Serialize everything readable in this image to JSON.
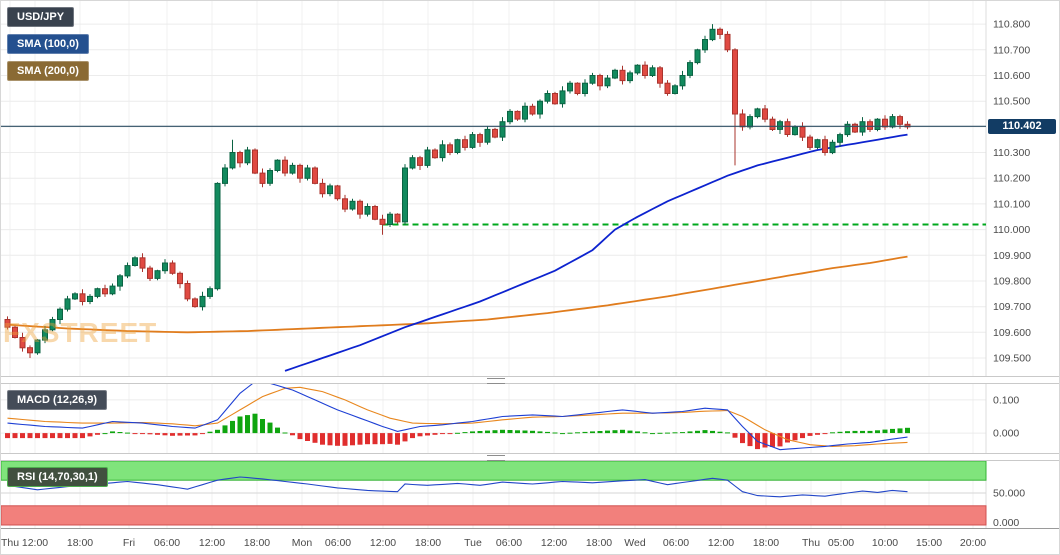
{
  "app": {
    "symbol_label": "USD/JPY",
    "sma100_label": "SMA (100,0)",
    "sma200_label": "SMA (200,0)",
    "macd_label": "MACD (12,26,9)",
    "rsi_label": "RSI (14,70,30,1)",
    "watermark": "FXSTREET",
    "price_badge": "110.402"
  },
  "ui_colors": {
    "symbol_badge": "#39424e",
    "sma100_badge": "#24508f",
    "sma200_badge": "#8a6a34",
    "macd_badge": "#444c58",
    "rsi_badge": "#41503f",
    "rsi_badge_border": "#4fae4f",
    "price_badge_bg": "#123c64"
  },
  "chart_data": {
    "type": "candlestick",
    "symbol": "USD/JPY",
    "colors": {
      "candle_up": "#128a5e",
      "candle_up_border": "#0b6343",
      "candle_down": "#e04a42",
      "candle_down_border": "#aa342e",
      "sma100": "#0d23cf",
      "sma200": "#e07c1d",
      "price_line": "#2e4f63",
      "support_dashed": "#00a81e",
      "macd": "#1d3fd4",
      "macd_signal": "#e8871e",
      "hist_up": "#0fa50f",
      "hist_down": "#e02e2e",
      "rsi": "#2246c8",
      "rsi_overbought": "#80e47c",
      "rsi_oversold": "#f2807c",
      "rsi_band_border_g": "#35b335",
      "rsi_band_border_r": "#d05050",
      "grid": "#f0f0f0",
      "grid_main": "#ececec",
      "axis_text": "#4a4a4a",
      "axis_border": "#9a9a9a",
      "axis_sep": "#dddddd",
      "rsi_mid_line": "#d6d6d6"
    },
    "x_axis": {
      "labels": [
        [
          "Thu",
          9
        ],
        [
          "12:00",
          34
        ],
        [
          "18:00",
          79
        ],
        [
          "Fri",
          128
        ],
        [
          "06:00",
          166
        ],
        [
          "12:00",
          211
        ],
        [
          "18:00",
          256
        ],
        [
          "Mon",
          301
        ],
        [
          "06:00",
          337
        ],
        [
          "12:00",
          382
        ],
        [
          "18:00",
          427
        ],
        [
          "Tue",
          472
        ],
        [
          "06:00",
          508
        ],
        [
          "12:00",
          553
        ],
        [
          "18:00",
          598
        ],
        [
          "Wed",
          634
        ],
        [
          "06:00",
          675
        ],
        [
          "12:00",
          720
        ],
        [
          "18:00",
          765
        ],
        [
          "Thu",
          810
        ],
        [
          "05:00",
          840
        ],
        [
          "10:00",
          884
        ],
        [
          "15:00",
          928
        ],
        [
          "20:00",
          972
        ]
      ]
    },
    "price_panel": {
      "ylim": [
        109.43,
        110.89
      ],
      "yticks": [
        110.8,
        110.7,
        110.6,
        110.5,
        110.4,
        110.3,
        110.2,
        110.1,
        110.0,
        109.9,
        109.8,
        109.7,
        109.6,
        109.5
      ],
      "current_price": 110.402,
      "support_dashed_level": 110.02,
      "support_dashed_start_index": 50,
      "first_open": 109.65,
      "wick_pattern": [
        0.012,
        0.006,
        0.018,
        0.009,
        0.004,
        0.015,
        0.01,
        0.007
      ],
      "special_wicks": {
        "3": {
          "low": 109.5
        },
        "30": {
          "high": 110.35
        },
        "50": {
          "low": 109.98
        },
        "94": {
          "high": 110.8
        },
        "97": {
          "low": 110.25
        }
      },
      "closes": [
        109.62,
        109.58,
        109.54,
        109.52,
        109.57,
        109.61,
        109.65,
        109.69,
        109.73,
        109.75,
        109.72,
        109.74,
        109.77,
        109.75,
        109.78,
        109.82,
        109.86,
        109.89,
        109.85,
        109.81,
        109.84,
        109.87,
        109.83,
        109.79,
        109.73,
        109.7,
        109.74,
        109.77,
        110.18,
        110.24,
        110.3,
        110.26,
        110.31,
        110.22,
        110.18,
        110.23,
        110.27,
        110.22,
        110.25,
        110.2,
        110.24,
        110.18,
        110.14,
        110.17,
        110.12,
        110.08,
        110.11,
        110.06,
        110.09,
        110.04,
        110.02,
        110.06,
        110.03,
        110.24,
        110.28,
        110.25,
        110.31,
        110.28,
        110.33,
        110.3,
        110.35,
        110.32,
        110.37,
        110.34,
        110.39,
        110.36,
        110.42,
        110.46,
        110.43,
        110.48,
        110.45,
        110.5,
        110.53,
        110.49,
        110.54,
        110.57,
        110.53,
        110.57,
        110.6,
        110.56,
        110.59,
        110.62,
        110.58,
        110.61,
        110.64,
        110.6,
        110.63,
        110.57,
        110.53,
        110.56,
        110.6,
        110.65,
        110.7,
        110.74,
        110.78,
        110.76,
        110.7,
        110.45,
        110.4,
        110.44,
        110.47,
        110.43,
        110.39,
        110.42,
        110.37,
        110.4,
        110.36,
        110.32,
        110.35,
        110.3,
        110.34,
        110.37,
        110.41,
        110.38,
        110.42,
        110.39,
        110.43,
        110.4,
        110.44,
        110.41,
        110.4
      ],
      "sma100": [
        [
          37,
          109.45
        ],
        [
          42,
          109.5
        ],
        [
          47,
          109.55
        ],
        [
          53,
          109.62
        ],
        [
          58,
          109.67
        ],
        [
          63,
          109.72
        ],
        [
          68,
          109.78
        ],
        [
          73,
          109.84
        ],
        [
          78,
          109.92
        ],
        [
          81,
          110.0
        ],
        [
          84,
          110.05
        ],
        [
          88,
          110.11
        ],
        [
          92,
          110.16
        ],
        [
          96,
          110.21
        ],
        [
          100,
          110.25
        ],
        [
          104,
          110.28
        ],
        [
          108,
          110.31
        ],
        [
          112,
          110.33
        ],
        [
          116,
          110.35
        ],
        [
          120,
          110.37
        ]
      ],
      "sma200": [
        [
          0,
          109.63
        ],
        [
          8,
          109.615
        ],
        [
          16,
          109.605
        ],
        [
          24,
          109.6
        ],
        [
          32,
          109.605
        ],
        [
          40,
          109.615
        ],
        [
          48,
          109.625
        ],
        [
          56,
          109.635
        ],
        [
          64,
          109.65
        ],
        [
          72,
          109.675
        ],
        [
          80,
          109.705
        ],
        [
          88,
          109.74
        ],
        [
          96,
          109.78
        ],
        [
          104,
          109.82
        ],
        [
          110,
          109.85
        ],
        [
          115,
          109.87
        ],
        [
          120,
          109.895
        ]
      ]
    },
    "macd_panel": {
      "title": "MACD (12,26,9)",
      "ylim": [
        -0.06,
        0.148
      ],
      "yticks": [
        0.1,
        0.0
      ],
      "macd_line": [
        [
          0,
          0.03
        ],
        [
          5,
          0.02
        ],
        [
          10,
          0.015
        ],
        [
          14,
          0.035
        ],
        [
          18,
          0.03
        ],
        [
          22,
          0.02
        ],
        [
          25,
          0.015
        ],
        [
          28,
          0.04
        ],
        [
          31,
          0.12
        ],
        [
          33,
          0.155
        ],
        [
          35,
          0.15
        ],
        [
          38,
          0.13
        ],
        [
          41,
          0.1
        ],
        [
          44,
          0.07
        ],
        [
          47,
          0.045
        ],
        [
          50,
          0.02
        ],
        [
          52,
          0.005
        ],
        [
          55,
          0.02
        ],
        [
          58,
          0.025
        ],
        [
          62,
          0.035
        ],
        [
          66,
          0.05
        ],
        [
          70,
          0.055
        ],
        [
          74,
          0.05
        ],
        [
          78,
          0.06
        ],
        [
          82,
          0.07
        ],
        [
          86,
          0.06
        ],
        [
          90,
          0.065
        ],
        [
          93,
          0.075
        ],
        [
          96,
          0.07
        ],
        [
          98,
          0.02
        ],
        [
          100,
          -0.025
        ],
        [
          103,
          -0.05
        ],
        [
          106,
          -0.045
        ],
        [
          109,
          -0.04
        ],
        [
          112,
          -0.033
        ],
        [
          115,
          -0.028
        ],
        [
          118,
          -0.018
        ],
        [
          120,
          -0.012
        ]
      ],
      "signal_line": [
        [
          0,
          0.045
        ],
        [
          5,
          0.035
        ],
        [
          10,
          0.03
        ],
        [
          14,
          0.03
        ],
        [
          18,
          0.032
        ],
        [
          22,
          0.028
        ],
        [
          25,
          0.022
        ],
        [
          28,
          0.03
        ],
        [
          31,
          0.07
        ],
        [
          34,
          0.11
        ],
        [
          37,
          0.135
        ],
        [
          39,
          0.138
        ],
        [
          42,
          0.125
        ],
        [
          45,
          0.1
        ],
        [
          48,
          0.07
        ],
        [
          51,
          0.045
        ],
        [
          54,
          0.03
        ],
        [
          58,
          0.028
        ],
        [
          62,
          0.03
        ],
        [
          66,
          0.04
        ],
        [
          70,
          0.048
        ],
        [
          74,
          0.05
        ],
        [
          78,
          0.055
        ],
        [
          82,
          0.06
        ],
        [
          86,
          0.06
        ],
        [
          90,
          0.062
        ],
        [
          93,
          0.066
        ],
        [
          96,
          0.068
        ],
        [
          98,
          0.05
        ],
        [
          101,
          0.01
        ],
        [
          104,
          -0.02
        ],
        [
          107,
          -0.035
        ],
        [
          110,
          -0.04
        ],
        [
          113,
          -0.038
        ],
        [
          116,
          -0.033
        ],
        [
          120,
          -0.028
        ]
      ]
    },
    "rsi_panel": {
      "title": "RSI (14,70,30,1)",
      "ylim": [
        0,
        100
      ],
      "yticks": [
        50,
        0
      ],
      "overbought": 70,
      "oversold": 30,
      "values": [
        [
          0,
          62
        ],
        [
          4,
          55
        ],
        [
          8,
          60
        ],
        [
          12,
          64
        ],
        [
          16,
          68
        ],
        [
          20,
          63
        ],
        [
          24,
          56
        ],
        [
          28,
          70
        ],
        [
          31,
          75
        ],
        [
          34,
          72
        ],
        [
          37,
          68
        ],
        [
          40,
          64
        ],
        [
          44,
          58
        ],
        [
          48,
          54
        ],
        [
          52,
          52
        ],
        [
          53,
          64
        ],
        [
          56,
          62
        ],
        [
          60,
          65
        ],
        [
          63,
          62
        ],
        [
          66,
          67
        ],
        [
          70,
          64
        ],
        [
          74,
          68
        ],
        [
          78,
          66
        ],
        [
          82,
          69
        ],
        [
          85,
          71
        ],
        [
          88,
          63
        ],
        [
          91,
          68
        ],
        [
          94,
          73
        ],
        [
          96,
          70
        ],
        [
          98,
          52
        ],
        [
          100,
          46
        ],
        [
          103,
          44
        ],
        [
          106,
          47
        ],
        [
          109,
          45
        ],
        [
          112,
          50
        ],
        [
          114,
          53
        ],
        [
          116,
          51
        ],
        [
          118,
          54
        ],
        [
          120,
          52
        ]
      ]
    }
  }
}
